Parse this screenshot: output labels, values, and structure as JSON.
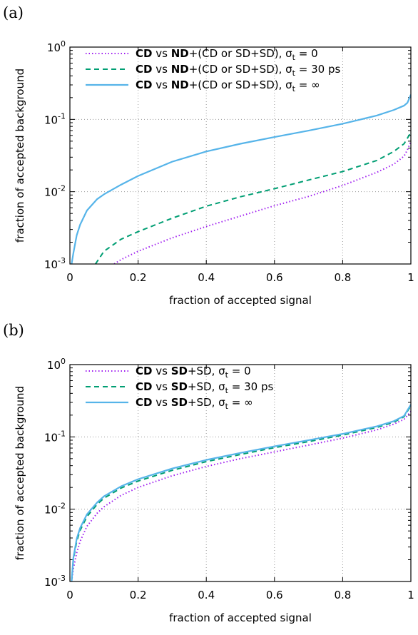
{
  "chart_data": [
    {
      "panel_label": "(a)",
      "type": "line",
      "xlabel": "fraction of accepted signal",
      "ylabel": "fraction of accepted background",
      "xlim": [
        0,
        1
      ],
      "ylim": [
        0.001,
        1
      ],
      "y_scale": "log",
      "grid": true,
      "legend_position": "top-left",
      "x_ticks": [
        "0",
        "0.2",
        "0.4",
        "0.6",
        "0.8",
        "1"
      ],
      "y_ticks": [
        {
          "base": "10",
          "exp": "0"
        },
        {
          "base": "10",
          "exp": "-1"
        },
        {
          "base": "10",
          "exp": "-2"
        },
        {
          "base": "10",
          "exp": "-3"
        }
      ],
      "series": [
        {
          "legend": {
            "a": "CD",
            "b": " vs ",
            "c": "ND",
            "d": "+(CD or SD+SD), σ",
            "sub": "t",
            "e": " = 0"
          },
          "color": "#a020f0",
          "dash": "dotted",
          "x": [
            0.13,
            0.15,
            0.2,
            0.3,
            0.4,
            0.5,
            0.6,
            0.7,
            0.8,
            0.9,
            0.95,
            0.98,
            0.99,
            1.0
          ],
          "y": [
            0.001,
            0.00115,
            0.0015,
            0.0023,
            0.0033,
            0.0046,
            0.0064,
            0.0086,
            0.0122,
            0.0185,
            0.024,
            0.031,
            0.038,
            0.05
          ]
        },
        {
          "legend": {
            "a": "CD",
            "b": " vs ",
            "c": "ND",
            "d": "+(CD or SD+SD), σ",
            "sub": "t",
            "e": " = 30 ps"
          },
          "color": "#009e73",
          "dash": "dashed",
          "x": [
            0.075,
            0.1,
            0.15,
            0.2,
            0.3,
            0.4,
            0.5,
            0.6,
            0.7,
            0.8,
            0.9,
            0.95,
            0.98,
            1.0
          ],
          "y": [
            0.001,
            0.0015,
            0.0022,
            0.0028,
            0.0043,
            0.0063,
            0.0085,
            0.011,
            0.0145,
            0.019,
            0.027,
            0.036,
            0.046,
            0.066
          ]
        },
        {
          "legend": {
            "a": "CD",
            "b": " vs ",
            "c": "ND",
            "d": "+(CD or SD+SD), σ",
            "sub": "t",
            "e": " = ∞"
          },
          "color": "#56b4e9",
          "dash": "solid",
          "x": [
            0.005,
            0.01,
            0.02,
            0.03,
            0.05,
            0.08,
            0.1,
            0.15,
            0.2,
            0.3,
            0.4,
            0.5,
            0.6,
            0.7,
            0.8,
            0.9,
            0.95,
            0.98,
            0.99,
            1.0
          ],
          "y": [
            0.001,
            0.0014,
            0.0025,
            0.0035,
            0.0055,
            0.0079,
            0.0092,
            0.0125,
            0.0165,
            0.026,
            0.036,
            0.046,
            0.057,
            0.07,
            0.087,
            0.113,
            0.135,
            0.155,
            0.17,
            0.22
          ]
        }
      ]
    },
    {
      "panel_label": "(b)",
      "type": "line",
      "xlabel": "fraction of accepted signal",
      "ylabel": "fraction of accepted background",
      "xlim": [
        0,
        1
      ],
      "ylim": [
        0.001,
        1
      ],
      "y_scale": "log",
      "grid": true,
      "legend_position": "top-left",
      "x_ticks": [
        "0",
        "0.2",
        "0.4",
        "0.6",
        "0.8",
        "1"
      ],
      "y_ticks": [
        {
          "base": "10",
          "exp": "0"
        },
        {
          "base": "10",
          "exp": "-1"
        },
        {
          "base": "10",
          "exp": "-2"
        },
        {
          "base": "10",
          "exp": "-3"
        }
      ],
      "series": [
        {
          "legend": {
            "a": "CD",
            "b": " vs ",
            "c": "SD",
            "d": "+SD, σ",
            "sub": "t",
            "e": " = 0"
          },
          "color": "#a020f0",
          "dash": "dotted",
          "x": [
            0.005,
            0.01,
            0.02,
            0.03,
            0.05,
            0.08,
            0.1,
            0.15,
            0.2,
            0.3,
            0.4,
            0.5,
            0.6,
            0.7,
            0.8,
            0.9,
            0.95,
            0.98,
            1.0
          ],
          "y": [
            0.001,
            0.0015,
            0.0025,
            0.0036,
            0.0058,
            0.0088,
            0.0108,
            0.0155,
            0.02,
            0.029,
            0.039,
            0.05,
            0.062,
            0.077,
            0.096,
            0.125,
            0.15,
            0.175,
            0.225
          ]
        },
        {
          "legend": {
            "a": "CD",
            "b": " vs ",
            "c": "SD",
            "d": "+SD, σ",
            "sub": "t",
            "e": " = 30 ps"
          },
          "color": "#009e73",
          "dash": "dashed",
          "x": [
            0.005,
            0.01,
            0.02,
            0.03,
            0.05,
            0.08,
            0.1,
            0.15,
            0.2,
            0.3,
            0.4,
            0.5,
            0.6,
            0.7,
            0.8,
            0.9,
            0.95,
            0.98,
            1.0
          ],
          "y": [
            0.001,
            0.002,
            0.0036,
            0.0051,
            0.0079,
            0.0117,
            0.0142,
            0.0196,
            0.0245,
            0.0345,
            0.0455,
            0.057,
            0.071,
            0.086,
            0.106,
            0.135,
            0.16,
            0.19,
            0.27
          ]
        },
        {
          "legend": {
            "a": "CD",
            "b": " vs ",
            "c": "SD",
            "d": "+SD, σ",
            "sub": "t",
            "e": " = ∞"
          },
          "color": "#56b4e9",
          "dash": "solid",
          "x": [
            0.005,
            0.01,
            0.02,
            0.03,
            0.05,
            0.08,
            0.1,
            0.15,
            0.2,
            0.3,
            0.4,
            0.5,
            0.6,
            0.7,
            0.8,
            0.9,
            0.95,
            0.98,
            1.0
          ],
          "y": [
            0.001,
            0.0021,
            0.0039,
            0.0055,
            0.0085,
            0.0124,
            0.0151,
            0.0207,
            0.026,
            0.0365,
            0.048,
            0.06,
            0.074,
            0.09,
            0.11,
            0.14,
            0.165,
            0.195,
            0.28
          ]
        }
      ]
    }
  ]
}
